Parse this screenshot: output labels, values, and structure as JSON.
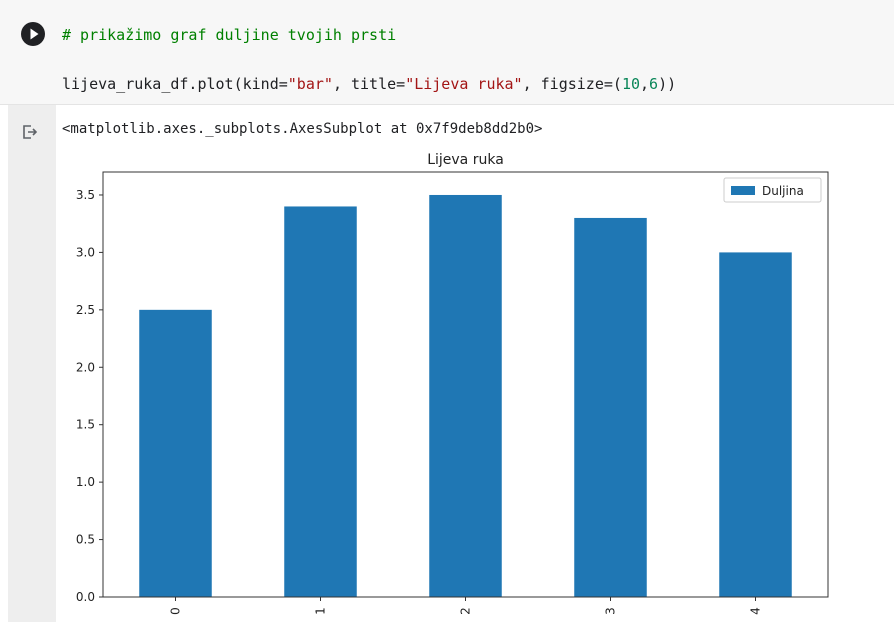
{
  "cell": {
    "comment": "# prikažimo graf duljine tvojih prsti",
    "code": {
      "p1": "lijeva_ruka_df.plot(kind=",
      "s1": "\"bar\"",
      "p2": ", title=",
      "s2": "\"Lijeva ruka\"",
      "p3": ", figsize=(",
      "n1": "10",
      "p4": ",",
      "n2": "6",
      "p5": "))"
    }
  },
  "output": {
    "repr": "<matplotlib.axes._subplots.AxesSubplot at 0x7f9deb8dd2b0>"
  },
  "chart_data": {
    "type": "bar",
    "title": "Lijeva ruka",
    "categories": [
      "0",
      "1",
      "2",
      "3",
      "4"
    ],
    "series": [
      {
        "name": "Duljina",
        "values": [
          2.5,
          3.4,
          3.5,
          3.3,
          3.0
        ],
        "color": "#1f77b4"
      }
    ],
    "ylim": [
      0,
      3.7
    ],
    "yticks": [
      "0.0",
      "0.5",
      "1.0",
      "1.5",
      "2.0",
      "2.5",
      "3.0",
      "3.5"
    ],
    "xlabel": "",
    "ylabel": "",
    "legend": "top-right",
    "grid": false
  },
  "icons": {
    "run": "play-circle-icon",
    "output": "output-arrow-icon"
  }
}
